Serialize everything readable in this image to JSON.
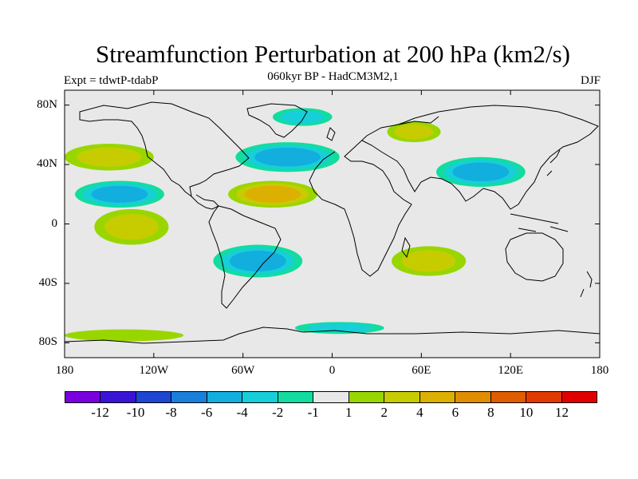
{
  "header": {
    "title": "Streamfunction Perturbation at 200 hPa (km2/s)",
    "subtitle": "060kyr BP - HadCM3M2,1",
    "experiment": "Expt = tdwtP-tdabP",
    "season": "DJF"
  },
  "axes": {
    "lat_labels": [
      "80N",
      "40N",
      "0",
      "40S",
      "80S"
    ],
    "lat_values": [
      80,
      40,
      0,
      -40,
      -80
    ],
    "lon_labels": [
      "180",
      "120W",
      "60W",
      "0",
      "60E",
      "120E",
      "180"
    ],
    "lon_values": [
      -180,
      -120,
      -60,
      0,
      60,
      120,
      180
    ],
    "lat_range": [
      -90,
      90
    ],
    "lon_range": [
      -180,
      180
    ]
  },
  "colorbar": {
    "labels": [
      "-12",
      "-10",
      "-8",
      "-6",
      "-4",
      "-2",
      "-1",
      "1",
      "2",
      "4",
      "6",
      "8",
      "10",
      "12"
    ],
    "colors": [
      "#7b00e0",
      "#3a14d6",
      "#1e46d2",
      "#1a7fda",
      "#12aede",
      "#16cfd8",
      "#12dca0",
      "#e8e8e8",
      "#99d600",
      "#c6cc00",
      "#dcb000",
      "#e08e00",
      "#e05c00",
      "#e03a00",
      "#e00000"
    ]
  },
  "colors": {
    "background": "#e8e8e8",
    "coast": "#000000"
  },
  "chart_data": {
    "type": "contour-map",
    "title": "Streamfunction Perturbation at 200 hPa (km2/s)",
    "units": "km2/s",
    "levels": [
      -12,
      -10,
      -8,
      -6,
      -4,
      -2,
      -1,
      1,
      2,
      4,
      6,
      8,
      10,
      12
    ],
    "regions": [
      {
        "name": "north-pacific-positive",
        "lon": -150,
        "lat": 45,
        "level": 4,
        "category": "2..4",
        "extent_lon": 30,
        "extent_lat": 9
      },
      {
        "name": "pacific-subtropical-negative",
        "lon": -143,
        "lat": 20,
        "level": -4,
        "category": "-4..-2",
        "extent_lon": 30,
        "extent_lat": 9
      },
      {
        "name": "south-pacific-positive",
        "lon": -135,
        "lat": -2,
        "level": 4,
        "category": "2..4",
        "extent_lon": 25,
        "extent_lat": 12
      },
      {
        "name": "north-atlantic-negative",
        "lon": -30,
        "lat": 45,
        "level": -4,
        "category": "-4..-2",
        "extent_lon": 35,
        "extent_lat": 10
      },
      {
        "name": "arctic-negative",
        "lon": -20,
        "lat": 72,
        "level": -2,
        "category": "-2..-1",
        "extent_lon": 20,
        "extent_lat": 6
      },
      {
        "name": "tropical-atlantic-positive",
        "lon": -40,
        "lat": 20,
        "level": 6,
        "category": "4..6",
        "extent_lon": 30,
        "extent_lat": 9
      },
      {
        "name": "south-america-negative",
        "lon": -50,
        "lat": -25,
        "level": -4,
        "category": "-4..-2",
        "extent_lon": 30,
        "extent_lat": 11
      },
      {
        "name": "europe-positive",
        "lon": 55,
        "lat": 62,
        "level": 4,
        "category": "2..4",
        "extent_lon": 18,
        "extent_lat": 7
      },
      {
        "name": "asia-negative",
        "lon": 100,
        "lat": 35,
        "level": -4,
        "category": "-4..-2",
        "extent_lon": 30,
        "extent_lat": 10
      },
      {
        "name": "indian-ocean-positive",
        "lon": 65,
        "lat": -25,
        "level": 4,
        "category": "2..4",
        "extent_lon": 25,
        "extent_lat": 10
      },
      {
        "name": "southern-ocean-negative",
        "lon": 5,
        "lat": -70,
        "level": -2,
        "category": "-2..-1",
        "extent_lon": 30,
        "extent_lat": 4
      },
      {
        "name": "antarctic-positive",
        "lon": -140,
        "lat": -75,
        "level": 2,
        "category": "1..2",
        "extent_lon": 40,
        "extent_lat": 4
      }
    ]
  }
}
